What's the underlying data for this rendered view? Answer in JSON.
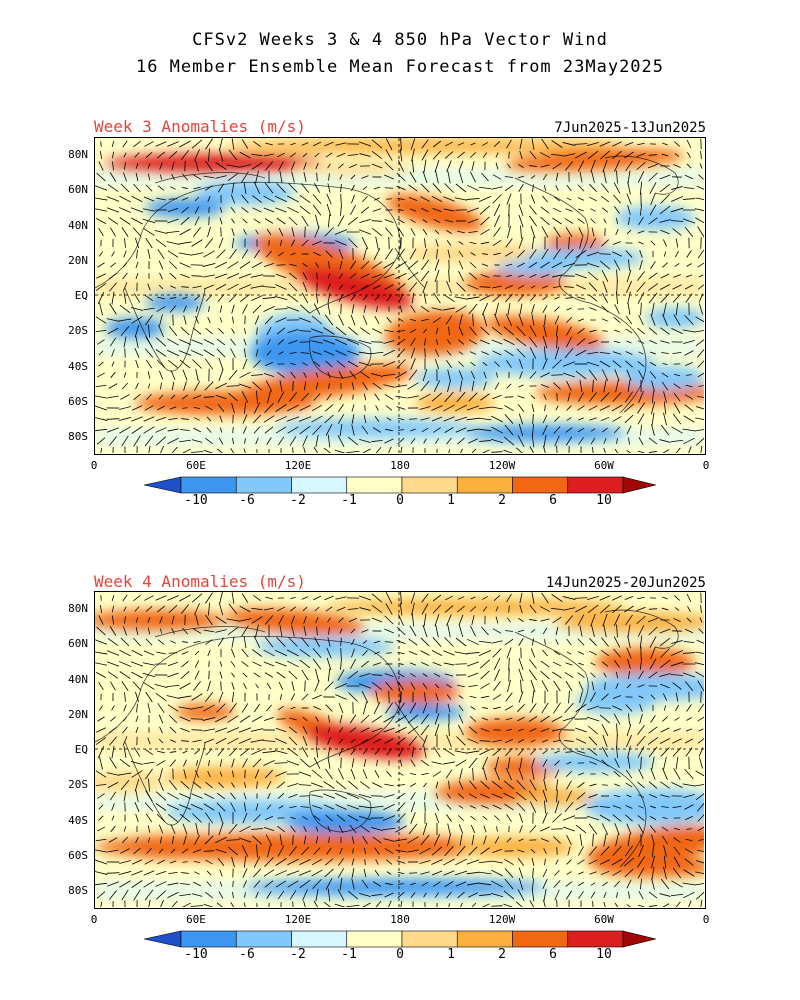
{
  "header": {
    "title_line1": "CFSv2 Weeks 3 & 4 850 hPa Vector Wind",
    "title_line2": "16 Member Ensemble Mean Forecast from 23May2025"
  },
  "panels": [
    {
      "label": "Week 3 Anomalies (m/s)",
      "dates": "7Jun2025-13Jun2025"
    },
    {
      "label": "Week 4 Anomalies (m/s)",
      "dates": "14Jun2025-20Jun2025"
    }
  ],
  "lat_labels": [
    "80N",
    "60N",
    "40N",
    "20N",
    "EQ",
    "20S",
    "40S",
    "60S",
    "80S"
  ],
  "lon_labels": [
    "0",
    "60E",
    "120E",
    "180",
    "120W",
    "60W",
    "0"
  ],
  "colorbar": {
    "labels": [
      "-10",
      "-6",
      "-2",
      "-1",
      "0",
      "1",
      "2",
      "6",
      "10"
    ],
    "colors": [
      "#1e6eeb",
      "#3c96f0",
      "#82c8fa",
      "#d7f8ff",
      "#ffffc8",
      "#ffda8c",
      "#fcb040",
      "#f06814",
      "#dc1e1e",
      "#a01010"
    ],
    "end_colors": {
      "low": "#1e50c8",
      "high": "#a00808"
    }
  },
  "colors": {
    "label_red": "#e8433a"
  }
}
